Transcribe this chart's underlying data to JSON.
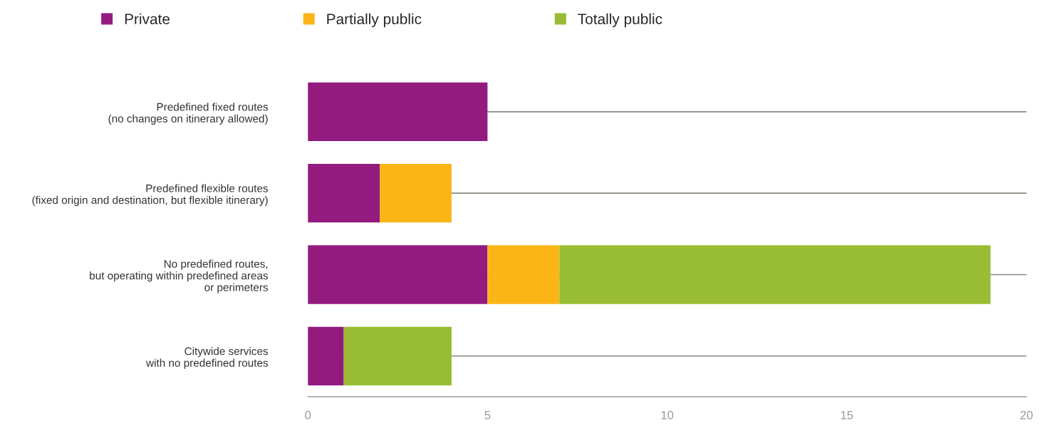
{
  "chart_data": {
    "type": "bar",
    "orientation": "horizontal",
    "stacked": true,
    "categories": [
      "Predefined fixed routes\n(no changes on itinerary allowed)",
      "Predefined flexible routes\n(fixed origin and destination, but flexible itinerary)",
      "No predefined routes,\nbut operating within predefined areas\nor perimeters",
      "Citywide services\nwith no predefined routes"
    ],
    "series": [
      {
        "name": "Private",
        "color": "#931b80",
        "values": [
          5,
          2,
          5,
          1
        ]
      },
      {
        "name": "Partially public",
        "color": "#fbb517",
        "values": [
          null,
          2,
          2,
          null
        ]
      },
      {
        "name": "Totally public",
        "color": "#98bd34",
        "values": [
          null,
          null,
          12,
          3
        ]
      }
    ],
    "xlim": [
      0,
      20
    ],
    "xticks": [
      0,
      5,
      10,
      15,
      20
    ],
    "grid": "y",
    "legend": "top left"
  }
}
